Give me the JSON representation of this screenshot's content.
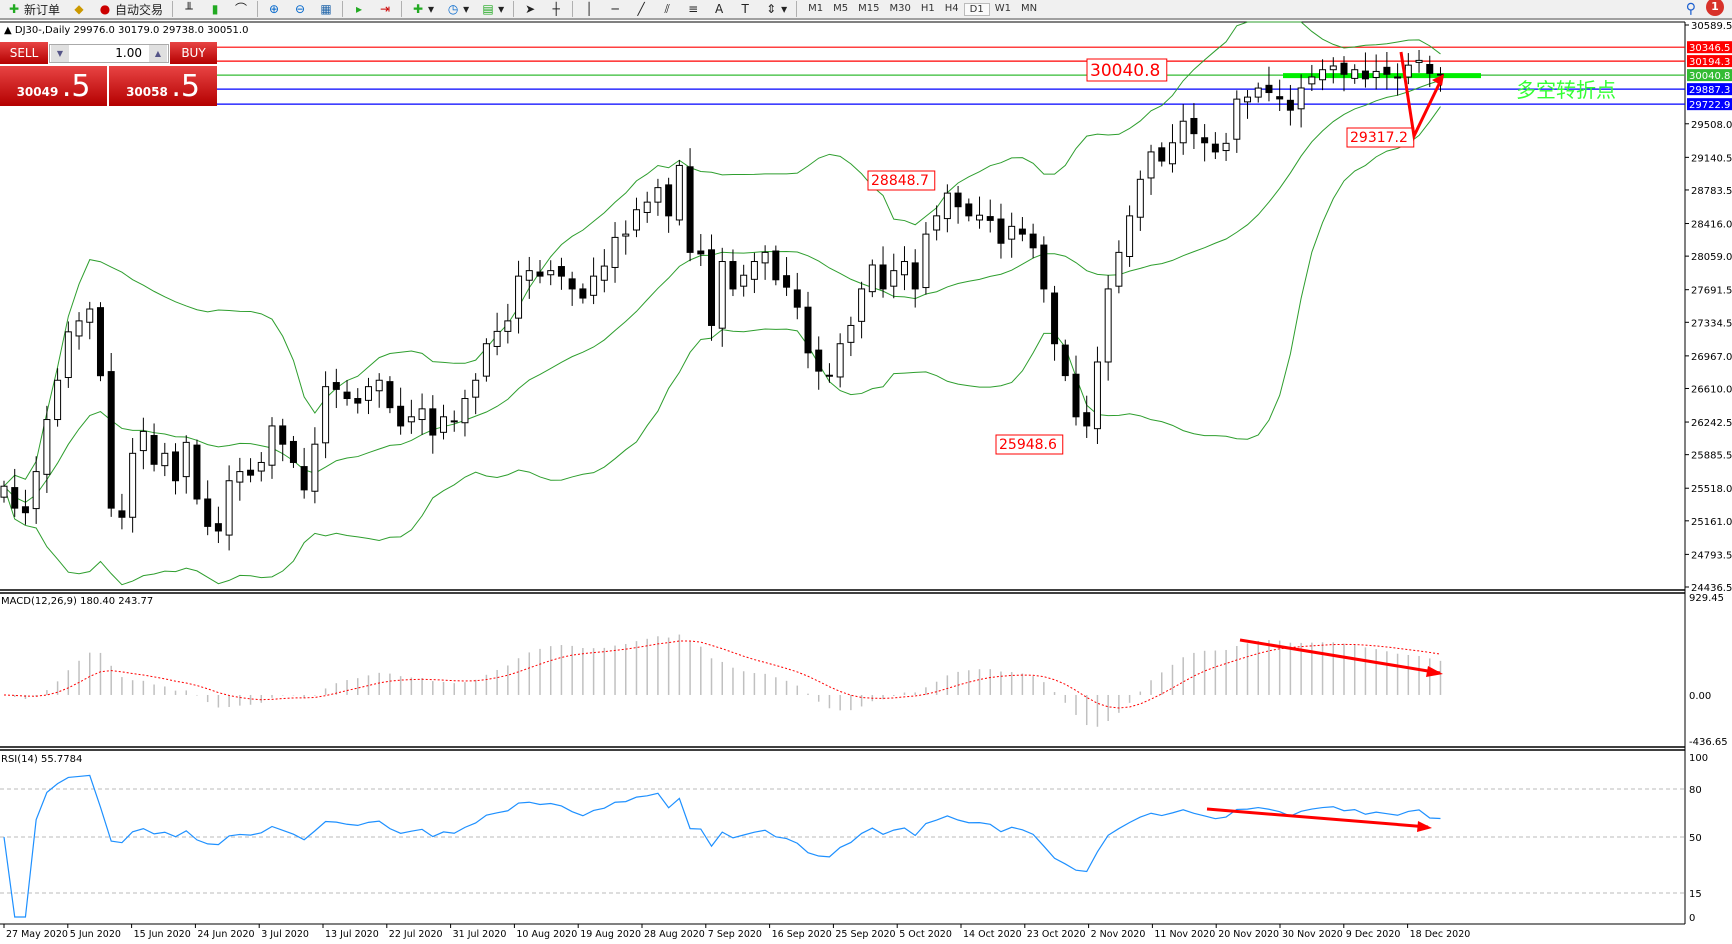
{
  "toolbar": {
    "new_order": "新订单",
    "auto_trading": "自动交易",
    "timeframes": [
      "M1",
      "M5",
      "M15",
      "M30",
      "H1",
      "H4",
      "D1",
      "W1",
      "MN"
    ],
    "active_timeframe": "D1",
    "notifications": "1"
  },
  "chart": {
    "header": "DJ30-,Daily  29976.0 30179.0 29738.0 30051.0",
    "symbol": "DJ30-",
    "period": "Daily"
  },
  "trade_panel": {
    "sell_label": "SELL",
    "buy_label": "BUY",
    "lot": "1.00",
    "sell_price_main": "30049",
    "sell_price_big": ".5",
    "buy_price_main": "30058",
    "buy_price_big": ".5"
  },
  "price_axis": [
    "30589.5",
    "29508.0",
    "29140.5",
    "28783.5",
    "28416.0",
    "28059.0",
    "27691.5",
    "27334.5",
    "26967.0",
    "26610.0",
    "26242.5",
    "25885.5",
    "25518.0",
    "25161.0",
    "24793.5",
    "24436.5"
  ],
  "date_axis": [
    "27 May 2020",
    "5 Jun 2020",
    "15 Jun 2020",
    "24 Jun 2020",
    "3 Jul 2020",
    "13 Jul 2020",
    "22 Jul 2020",
    "31 Jul 2020",
    "10 Aug 2020",
    "19 Aug 2020",
    "28 Aug 2020",
    "7 Sep 2020",
    "16 Sep 2020",
    "25 Sep 2020",
    "5 Oct 2020",
    "14 Oct 2020",
    "23 Oct 2020",
    "2 Nov 2020",
    "11 Nov 2020",
    "20 Nov 2020",
    "30 Nov 2020",
    "9 Dec 2020",
    "18 Dec 2020"
  ],
  "hlines": [
    {
      "label": "30346.5",
      "color": "#ff0000"
    },
    {
      "label": "30194.3",
      "color": "#ff0000"
    },
    {
      "label": "30040.8",
      "color": "#33bb33"
    },
    {
      "label": "29887.3",
      "color": "#0000ff"
    },
    {
      "label": "29722.9",
      "color": "#0000ff"
    }
  ],
  "annotations": {
    "price_labels": [
      "30040.8",
      "28848.7",
      "25948.6",
      "29317.2"
    ],
    "text": "多空转折点",
    "text_color": "#33ff33"
  },
  "macd": {
    "label": "MACD(12,26,9) 180.40 243.77",
    "axis": [
      "929.45",
      "0.00",
      "-436.65"
    ]
  },
  "rsi": {
    "label": "RSI(14) 55.7784",
    "axis": [
      "100",
      "80",
      "50",
      "15",
      "0"
    ]
  },
  "chart_data": {
    "type": "candlestick",
    "close": [
      25540,
      25300,
      25250,
      25700,
      26270,
      26700,
      27230,
      27350,
      27480,
      26750,
      25300,
      25200,
      25900,
      26140,
      25780,
      25900,
      25600,
      26020,
      25400,
      25100,
      25050,
      25600,
      25700,
      25661,
      25800,
      26200,
      26000,
      25800,
      25500,
      26000,
      26630,
      26600,
      26500,
      26450,
      26630,
      26700,
      26400,
      26200,
      26300,
      26387,
      26100,
      26300,
      26250,
      26500,
      26700,
      27100,
      27235,
      27350,
      27840,
      27900,
      27840,
      27900,
      27840,
      27700,
      27600,
      27840,
      27950,
      28264,
      28300,
      28567,
      28650,
      28809,
      28500,
      29052,
      28100,
      28083,
      27300,
      28000,
      27700,
      27850,
      28000,
      28100,
      27800,
      27719,
      27500,
      27000,
      26800,
      26751,
      27100,
      27300,
      27700,
      27962,
      27700,
      27900,
      28000,
      27700,
      28300,
      28500,
      28749,
      28600,
      28500,
      28507,
      28450,
      28200,
      28385,
      28300,
      28150,
      27700,
      27100,
      26751,
      26300,
      26200,
      26900,
      27700,
      28100,
      28500,
      28900,
      29200,
      29100,
      29300,
      29536,
      29400,
      29300,
      29200,
      29294,
      29778,
      29800,
      29899,
      29850,
      29780,
      29657,
      29900,
      30020,
      30100,
      30141,
      30050,
      30100,
      30000,
      30081,
      30050,
      30020,
      30150,
      30202,
      30060,
      30051
    ],
    "ylim": [
      24436.5,
      30589.5
    ],
    "indicators": [
      "Bollinger Bands",
      "MACD(12,26,9)",
      "RSI(14)"
    ]
  }
}
